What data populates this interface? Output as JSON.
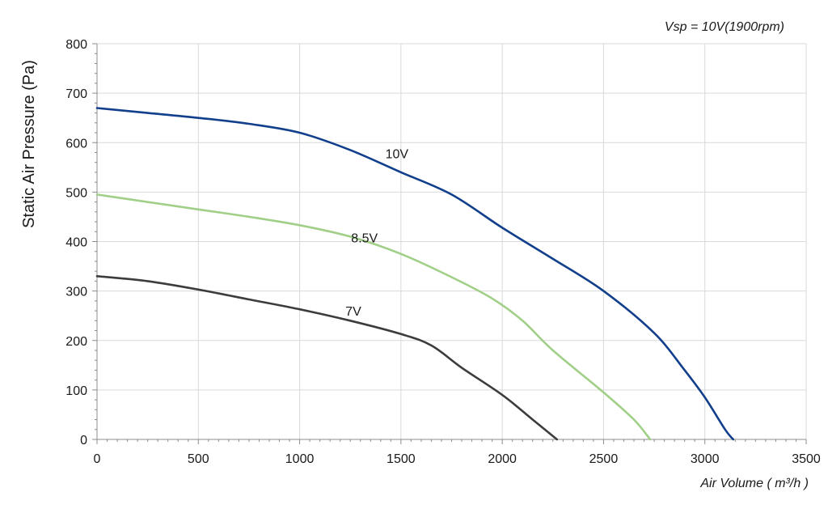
{
  "chart_data": {
    "type": "line",
    "title": "",
    "subtitle": "Vsp = 10V(1900rpm)",
    "xlabel": "Air Volume ( m³/h )",
    "ylabel": "Static Air Pressure  (Pa)",
    "xlim": [
      0,
      3500
    ],
    "ylim": [
      0,
      800
    ],
    "x_ticks": [
      "0",
      "500",
      "1000",
      "1500",
      "2000",
      "2500",
      "3000",
      "3500"
    ],
    "y_ticks": [
      "0",
      "100",
      "200",
      "300",
      "400",
      "500",
      "600",
      "700",
      "800"
    ],
    "grid": true,
    "legend": "none",
    "series": [
      {
        "name": "10V",
        "color": "#123f8c",
        "label_at": [
          1480,
          578
        ],
        "x": [
          0,
          250,
          500,
          750,
          1000,
          1250,
          1500,
          1750,
          2000,
          2250,
          2500,
          2750,
          2900,
          3000,
          3100,
          3140
        ],
        "y": [
          670,
          660,
          650,
          638,
          620,
          585,
          540,
          495,
          428,
          365,
          300,
          215,
          140,
          85,
          20,
          0
        ]
      },
      {
        "name": "8.5V",
        "color": "#a0cf87",
        "label_at": [
          1320,
          408
        ],
        "x": [
          0,
          250,
          500,
          750,
          1000,
          1250,
          1500,
          1750,
          1950,
          2100,
          2250,
          2500,
          2650,
          2730
        ],
        "y": [
          495,
          480,
          465,
          450,
          433,
          410,
          375,
          328,
          285,
          240,
          180,
          95,
          40,
          0
        ]
      },
      {
        "name": "7V",
        "color": "#3c3c3c",
        "label_at": [
          1265,
          260
        ],
        "x": [
          0,
          250,
          500,
          750,
          1000,
          1250,
          1500,
          1650,
          1800,
          2000,
          2150,
          2270
        ],
        "y": [
          330,
          320,
          303,
          283,
          263,
          240,
          213,
          190,
          145,
          90,
          40,
          0
        ]
      }
    ]
  }
}
